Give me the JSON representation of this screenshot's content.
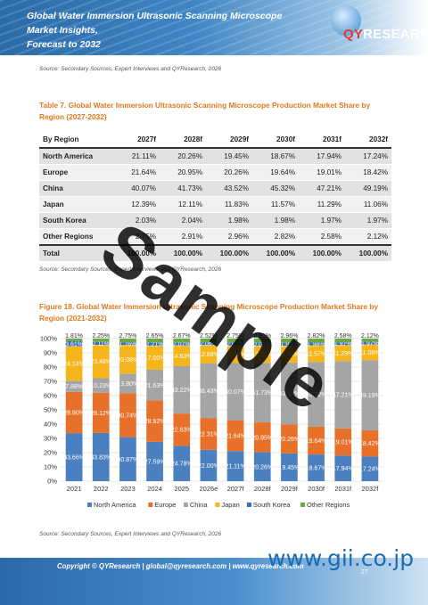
{
  "header": {
    "title_line1": "Global Water Immersion Ultrasonic Scanning Microscope Market Insights,",
    "title_line2": "Forecast to 2032",
    "logo_q": "QY",
    "logo_rest": "RESEARCH"
  },
  "source_line": "Source: Secondary Sources, Expert Interviews and QYResearch, 2026",
  "table": {
    "caption": "Table 7.   Global Water Immersion Ultrasonic Scanning Microscope Production Market Share by Region (2027-2032)",
    "headers": [
      "By Region",
      "2027f",
      "2028f",
      "2029f",
      "2030f",
      "2031f",
      "2032f"
    ],
    "rows": [
      [
        "North America",
        "21.11%",
        "20.26%",
        "19.45%",
        "18.67%",
        "17.94%",
        "17.24%"
      ],
      [
        "Europe",
        "21.64%",
        "20.95%",
        "20.26%",
        "19.64%",
        "19.01%",
        "18.42%"
      ],
      [
        "China",
        "40.07%",
        "41.73%",
        "43.52%",
        "45.32%",
        "47.21%",
        "49.19%"
      ],
      [
        "Japan",
        "12.39%",
        "12.11%",
        "11.83%",
        "11.57%",
        "11.29%",
        "11.06%"
      ],
      [
        "South Korea",
        "2.03%",
        "2.04%",
        "1.98%",
        "1.98%",
        "1.97%",
        "1.97%"
      ],
      [
        "Other Regions",
        "2.75%",
        "2.91%",
        "2.96%",
        "2.82%",
        "2.58%",
        "2.12%"
      ],
      [
        "Total",
        "100.00%",
        "100.00%",
        "100.00%",
        "100.00%",
        "100.00%",
        "100.00%"
      ]
    ],
    "source": "Source: Secondary Sources, Expert Interviews and QYResearch, 2026"
  },
  "figure": {
    "caption": "Figure 18.  Global Water Immersion Ultrasonic Scanning Microscope Production Market Share by Region (2021-2032)",
    "source": "Source: Secondary Sources, Expert Interviews and QYResearch, 2026"
  },
  "chart_data": {
    "type": "bar",
    "stacked": true,
    "categories": [
      "2021",
      "2022",
      "2023",
      "2024",
      "2025",
      "2026e",
      "2027f",
      "2028f",
      "2029f",
      "2030f",
      "2031f",
      "2032f"
    ],
    "series": [
      {
        "name": "North America",
        "color": "#4a7fc0",
        "values": [
          33.66,
          33.83,
          30.87,
          27.59,
          24.78,
          22.0,
          21.11,
          20.26,
          19.45,
          18.67,
          17.94,
          17.24
        ]
      },
      {
        "name": "Europe",
        "color": "#e8712a",
        "values": [
          28.9,
          28.12,
          30.74,
          28.92,
          22.63,
          22.31,
          21.64,
          20.95,
          20.26,
          19.64,
          19.01,
          18.42
        ]
      },
      {
        "name": "China",
        "color": "#a5a5a5",
        "values": [
          7.88,
          10.23,
          13.8,
          21.63,
          33.22,
          38.43,
          40.07,
          41.73,
          43.52,
          45.32,
          47.21,
          49.19
        ]
      },
      {
        "name": "Japan",
        "color": "#f5b51c",
        "values": [
          24.14,
          23.46,
          20.08,
          17.0,
          14.63,
          12.68,
          12.39,
          12.11,
          11.83,
          11.57,
          11.29,
          11.06
        ]
      },
      {
        "name": "South Korea",
        "color": "#3a6fb5",
        "values": [
          3.61,
          2.11,
          1.76,
          2.21,
          2.07,
          2.06,
          2.03,
          2.04,
          1.98,
          1.98,
          1.97,
          1.97
        ]
      },
      {
        "name": "Other Regions",
        "color": "#6aaa3e",
        "values": [
          1.81,
          2.25,
          2.75,
          2.65,
          2.67,
          2.52,
          2.75,
          2.91,
          2.96,
          2.82,
          2.58,
          2.12
        ]
      }
    ],
    "y_ticks": [
      "0%",
      "10%",
      "20%",
      "30%",
      "40%",
      "50%",
      "60%",
      "70%",
      "80%",
      "90%",
      "100%"
    ],
    "ylim": [
      0,
      100
    ],
    "legend_position": "bottom"
  },
  "watermark": "Sample",
  "footer": {
    "copyright": "Copyright © QYResearch | global@qyresearch.com | www.qyresearch.com",
    "page": "27"
  },
  "gii_mark": "www.gii.co.jp"
}
